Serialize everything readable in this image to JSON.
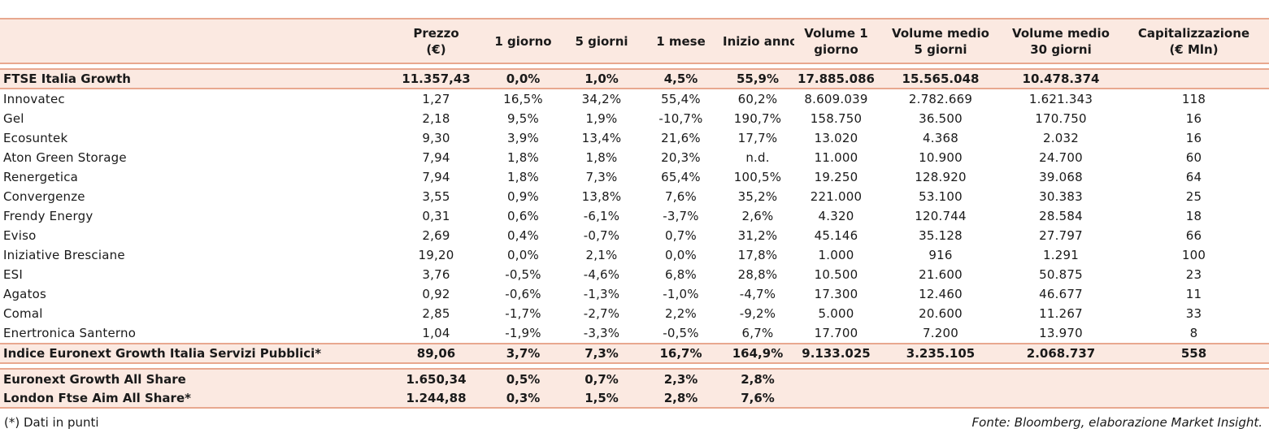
{
  "columns": [
    "",
    "Prezzo\n(€)",
    "1 giorno",
    "5 giorni",
    "1 mese",
    "Inizio anno",
    "Volume 1\ngiorno",
    "Volume medio\n5 giorni",
    "Volume medio\n30 giorni",
    "Capitalizzazione\n(€ Mln)"
  ],
  "total": [
    "FTSE Italia Growth",
    "11.357,43",
    "0,0%",
    "1,0%",
    "4,5%",
    "55,9%",
    "17.885.086",
    "15.565.048",
    "10.478.374",
    ""
  ],
  "rows": [
    [
      "Innovatec",
      "1,27",
      "16,5%",
      "34,2%",
      "55,4%",
      "60,2%",
      "8.609.039",
      "2.782.669",
      "1.621.343",
      "118"
    ],
    [
      "Gel",
      "2,18",
      "9,5%",
      "1,9%",
      "-10,7%",
      "190,7%",
      "158.750",
      "36.500",
      "170.750",
      "16"
    ],
    [
      "Ecosuntek",
      "9,30",
      "3,9%",
      "13,4%",
      "21,6%",
      "17,7%",
      "13.020",
      "4.368",
      "2.032",
      "16"
    ],
    [
      "Aton Green Storage",
      "7,94",
      "1,8%",
      "1,8%",
      "20,3%",
      "n.d.",
      "11.000",
      "10.900",
      "24.700",
      "60"
    ],
    [
      "Renergetica",
      "7,94",
      "1,8%",
      "7,3%",
      "65,4%",
      "100,5%",
      "19.250",
      "128.920",
      "39.068",
      "64"
    ],
    [
      "Convergenze",
      "3,55",
      "0,9%",
      "13,8%",
      "7,6%",
      "35,2%",
      "221.000",
      "53.100",
      "30.383",
      "25"
    ],
    [
      "Frendy Energy",
      "0,31",
      "0,6%",
      "-6,1%",
      "-3,7%",
      "2,6%",
      "4.320",
      "120.744",
      "28.584",
      "18"
    ],
    [
      "Eviso",
      "2,69",
      "0,4%",
      "-0,7%",
      "0,7%",
      "31,2%",
      "45.146",
      "35.128",
      "27.797",
      "66"
    ],
    [
      "Iniziative Bresciane",
      "19,20",
      "0,0%",
      "2,1%",
      "0,0%",
      "17,8%",
      "1.000",
      "916",
      "1.291",
      "100"
    ],
    [
      "ESI",
      "3,76",
      "-0,5%",
      "-4,6%",
      "6,8%",
      "28,8%",
      "10.500",
      "21.600",
      "50.875",
      "23"
    ],
    [
      "Agatos",
      "0,92",
      "-0,6%",
      "-1,3%",
      "-1,0%",
      "-4,7%",
      "17.300",
      "12.460",
      "46.677",
      "11"
    ],
    [
      "Comal",
      "2,85",
      "-1,7%",
      "-2,7%",
      "2,2%",
      "-9,2%",
      "5.000",
      "20.600",
      "11.267",
      "33"
    ],
    [
      "Enertronica Santerno",
      "1,04",
      "-1,9%",
      "-3,3%",
      "-0,5%",
      "6,7%",
      "17.700",
      "7.200",
      "13.970",
      "8"
    ]
  ],
  "sector_index": [
    "Indice Euronext Growth Italia Servizi Pubblici*",
    "89,06",
    "3,7%",
    "7,3%",
    "16,7%",
    "164,9%",
    "9.133.025",
    "3.235.105",
    "2.068.737",
    "558"
  ],
  "indices": [
    [
      "Euronext Growth All Share",
      "1.650,34",
      "0,5%",
      "0,7%",
      "2,3%",
      "2,8%",
      "",
      "",
      "",
      ""
    ],
    [
      "London Ftse Aim All Share*",
      "1.244,88",
      "0,3%",
      "1,5%",
      "2,8%",
      "7,6%",
      "",
      "",
      "",
      ""
    ]
  ],
  "footer": {
    "note": "(*) Dati in punti",
    "source": "Fonte: Bloomberg, elaborazione Market Insight."
  }
}
